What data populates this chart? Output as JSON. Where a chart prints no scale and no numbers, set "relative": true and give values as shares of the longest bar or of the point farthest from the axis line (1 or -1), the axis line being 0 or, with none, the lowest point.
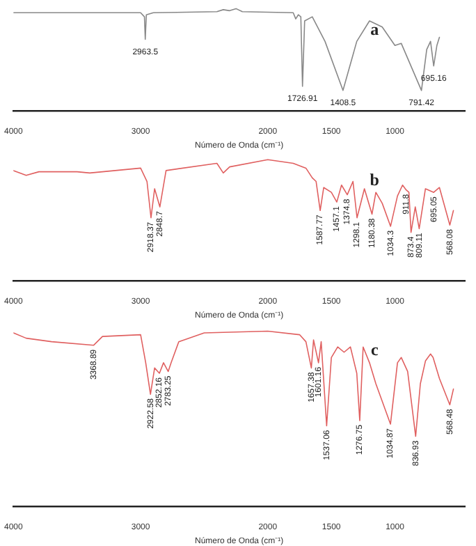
{
  "chart_data": [
    {
      "type": "line",
      "relative": true,
      "xlabel": "Número de Onda (cm⁻¹)",
      "xlim": [
        4000,
        450
      ],
      "xticks": [
        4000,
        3000,
        2000,
        1500,
        1000
      ],
      "grid": false,
      "legend": false,
      "marker": "none",
      "tick_labels": "x",
      "series": [
        {
          "color": "#888888",
          "x": [
            4000,
            3500,
            3000,
            2970,
            2963.5,
            2955,
            2900,
            2400,
            2350,
            2300,
            2250,
            2200,
            1800,
            1780,
            1760,
            1740,
            1726.91,
            1710,
            1650,
            1550,
            1408.5,
            1300,
            1200,
            1100,
            1000,
            950,
            791.42,
            750,
            720,
            695.16,
            670,
            650
          ],
          "values": [
            0.96,
            0.96,
            0.96,
            0.92,
            0.7,
            0.94,
            0.96,
            0.97,
            0.99,
            0.98,
            1,
            0.97,
            0.96,
            0.9,
            0.94,
            0.92,
            0.24,
            0.88,
            0.92,
            0.68,
            0.2,
            0.68,
            0.88,
            0.82,
            0.64,
            0.66,
            0.2,
            0.6,
            0.68,
            0.44,
            0.64,
            0.72
          ]
        }
      ],
      "annotations": [
        "a",
        {
          "text": "2963.5",
          "x": 2963.5,
          "y": 0.7
        },
        {
          "text": "1726.91",
          "x": 1726.91,
          "y": 0.24
        },
        {
          "text": "1408.5",
          "x": 1408.5,
          "y": 0.2
        },
        {
          "text": "791.42",
          "x": 791.42,
          "y": 0.2
        },
        {
          "text": "695.16",
          "x": 695.16,
          "y": 0.44
        }
      ]
    },
    {
      "type": "line",
      "relative": true,
      "xlabel": "Número de Onda (cm⁻¹)",
      "xlim": [
        4000,
        450
      ],
      "xticks": [
        4000,
        3000,
        2000,
        1500,
        1000
      ],
      "grid": false,
      "legend": false,
      "marker": "none",
      "tick_labels": "x",
      "series": [
        {
          "color": "#e06060",
          "x": [
            4000,
            3900,
            3800,
            3500,
            3400,
            3000,
            2950,
            2918.37,
            2890,
            2848.7,
            2800,
            2400,
            2350,
            2300,
            2000,
            1800,
            1700,
            1650,
            1620,
            1587.77,
            1560,
            1500,
            1457.1,
            1420,
            1374.8,
            1330,
            1298.1,
            1240,
            1180.38,
            1150,
            1100,
            1034.3,
            980,
            940,
            911.8,
            890,
            873.4,
            840,
            809.11,
            760,
            695.05,
            650,
            568.08,
            540
          ],
          "values": [
            0.91,
            0.87,
            0.9,
            0.9,
            0.89,
            0.93,
            0.82,
            0.52,
            0.76,
            0.61,
            0.91,
            0.97,
            0.89,
            0.94,
            1,
            0.97,
            0.93,
            0.85,
            0.82,
            0.58,
            0.77,
            0.73,
            0.65,
            0.79,
            0.71,
            0.82,
            0.52,
            0.76,
            0.55,
            0.73,
            0.64,
            0.45,
            0.7,
            0.79,
            0.75,
            0.73,
            0.4,
            0.61,
            0.43,
            0.76,
            0.73,
            0.77,
            0.46,
            0.58
          ]
        }
      ],
      "annotations": [
        "b",
        {
          "text": "2918.37",
          "x": 2918.37,
          "y": 0.52
        },
        {
          "text": "2848.7",
          "x": 2848.7,
          "y": 0.61
        },
        {
          "text": "1587.77",
          "x": 1587.77,
          "y": 0.58
        },
        {
          "text": "1457.1",
          "x": 1457.1,
          "y": 0.65
        },
        {
          "text": "1374.8",
          "x": 1374.8,
          "y": 0.71
        },
        {
          "text": "1298.1",
          "x": 1298.1,
          "y": 0.52
        },
        {
          "text": "1180.38",
          "x": 1180.38,
          "y": 0.55
        },
        {
          "text": "1034.3",
          "x": 1034.3,
          "y": 0.45
        },
        {
          "text": "911.8",
          "x": 911.8,
          "y": 0.75
        },
        {
          "text": "873.4",
          "x": 873.4,
          "y": 0.4
        },
        {
          "text": "809.11",
          "x": 809.11,
          "y": 0.43
        },
        {
          "text": "695.05",
          "x": 695.05,
          "y": 0.73
        },
        {
          "text": "568.08",
          "x": 568.08,
          "y": 0.46
        }
      ]
    },
    {
      "type": "line",
      "relative": true,
      "xlabel": "Número de Onda (cm⁻¹)",
      "xlim": [
        4000,
        450
      ],
      "xticks": [
        4000,
        3000,
        2000,
        1500,
        1000
      ],
      "grid": false,
      "legend": false,
      "marker": "none",
      "tick_labels": "x",
      "series": [
        {
          "color": "#e06060",
          "x": [
            4000,
            3900,
            3700,
            3368.89,
            3300,
            3000,
            2960,
            2922.58,
            2890,
            2852.16,
            2820,
            2783.25,
            2760,
            2700,
            2500,
            2000,
            1750,
            1700,
            1657.38,
            1640,
            1601.16,
            1580,
            1537.06,
            1500,
            1450,
            1400,
            1350,
            1300,
            1276.75,
            1250,
            1200,
            1150,
            1034.87,
            980,
            950,
            900,
            836.93,
            800,
            760,
            720,
            700,
            650,
            568.48,
            540
          ],
          "values": [
            0.99,
            0.96,
            0.94,
            0.92,
            0.97,
            0.98,
            0.82,
            0.64,
            0.79,
            0.76,
            0.82,
            0.77,
            0.82,
            0.94,
            0.99,
            1,
            0.98,
            0.94,
            0.79,
            0.95,
            0.82,
            0.94,
            0.46,
            0.85,
            0.91,
            0.88,
            0.91,
            0.76,
            0.49,
            0.91,
            0.82,
            0.7,
            0.47,
            0.82,
            0.85,
            0.77,
            0.4,
            0.7,
            0.83,
            0.87,
            0.85,
            0.73,
            0.58,
            0.67
          ]
        }
      ],
      "annotations": [
        "c",
        {
          "text": "3368.89",
          "x": 3368.89,
          "y": 0.92
        },
        {
          "text": "2922.58",
          "x": 2922.58,
          "y": 0.64
        },
        {
          "text": "2852.16",
          "x": 2852.16,
          "y": 0.76
        },
        {
          "text": "2783.25",
          "x": 2783.25,
          "y": 0.77
        },
        {
          "text": "1657.38",
          "x": 1657.38,
          "y": 0.79
        },
        {
          "text": "1601.16",
          "x": 1601.16,
          "y": 0.82
        },
        {
          "text": "1537.06",
          "x": 1537.06,
          "y": 0.46
        },
        {
          "text": "1276.75",
          "x": 1276.75,
          "y": 0.49
        },
        {
          "text": "1034.87",
          "x": 1034.87,
          "y": 0.47
        },
        {
          "text": "836.93",
          "x": 836.93,
          "y": 0.4
        },
        {
          "text": "568.48",
          "x": 568.48,
          "y": 0.58
        }
      ]
    }
  ]
}
